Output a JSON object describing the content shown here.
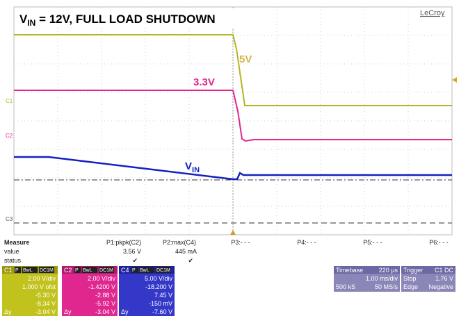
{
  "title": {
    "main": "V",
    "sub": "IN",
    "rest": " = 12V, FULL LOAD SHUTDOWN"
  },
  "brand": "LeCroy",
  "trace_labels": {
    "five": "5V",
    "three": "3.3V",
    "vin_main": "V",
    "vin_sub": "IN"
  },
  "channel_markers": [
    "C1",
    "C2",
    "C3"
  ],
  "measure": {
    "title": "Measure",
    "value_label": "value",
    "status_label": "status",
    "params": [
      {
        "name": "P1:pkpk(C2)",
        "value": "3.56 V",
        "status": "✔"
      },
      {
        "name": "P2:max(C4)",
        "value": "445 mA",
        "status": "✔"
      },
      {
        "name": "P3:- - -"
      },
      {
        "name": "P4:- - -"
      },
      {
        "name": "P5:- - -"
      },
      {
        "name": "P6:- - -"
      }
    ]
  },
  "channels": [
    {
      "name": "C1",
      "badges": [
        "P",
        "BwL",
        "DC1M"
      ],
      "rows": [
        "2.00 V/div",
        "1.000 V ofst",
        "-5.30 V",
        "-8.34 V",
        "-3.04 V"
      ]
    },
    {
      "name": "C2",
      "badges": [
        "P",
        "BwL",
        "DC1M"
      ],
      "rows": [
        "2.00 V/div",
        "-1.4200 V",
        "-2.88 V",
        "-5.92 V",
        "-3.04 V"
      ]
    },
    {
      "name": "C4",
      "badges": [
        "P",
        "BwL",
        "DC1M"
      ],
      "rows": [
        "5.00 V/div",
        "-18.200 V",
        "7.45 V",
        "-150 mV",
        "-7.60 V"
      ]
    }
  ],
  "delta_label": "Δy",
  "timebase": {
    "label": "Timebase",
    "delay": "220 µs",
    "div": "1.00 ms/div",
    "samples": "500 kS",
    "rate": "50 MS/s"
  },
  "trigger": {
    "label": "Trigger",
    "source": "C1 DC",
    "mode": "Stop",
    "level": "1.76 V",
    "type": "Edge",
    "slope": "Negative"
  }
}
